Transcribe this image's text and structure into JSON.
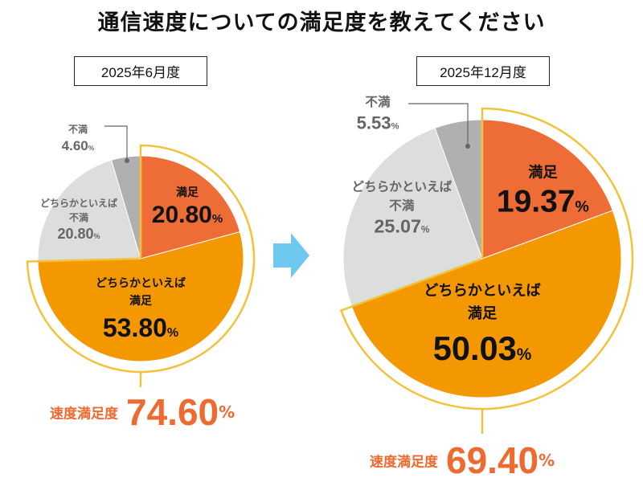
{
  "title": "通信速度についての満足度を教えてください",
  "chart_data": [
    {
      "type": "pie",
      "title": "2025年6月度",
      "categories": [
        "満足",
        "どちらかといえば満足",
        "どちらかといえば不満",
        "不満"
      ],
      "values": [
        20.8,
        53.8,
        20.8,
        4.6
      ],
      "value_labels": [
        "20.80",
        "53.80",
        "20.80",
        "4.60"
      ],
      "unit": "%",
      "colors": [
        "#ee6c35",
        "#f39800",
        "#dcdddd",
        "#b0b0b0"
      ],
      "total_label": "速度満足度",
      "total_value": "74.60"
    },
    {
      "type": "pie",
      "title": "2025年12月度",
      "categories": [
        "満足",
        "どちらかといえば満足",
        "どちらかといえば不満",
        "不満"
      ],
      "values": [
        19.37,
        50.03,
        25.07,
        5.53
      ],
      "value_labels": [
        "19.37",
        "50.03",
        "25.07",
        "5.53"
      ],
      "unit": "%",
      "colors": [
        "#ee6c35",
        "#f39800",
        "#dcdddd",
        "#b0b0b0"
      ],
      "total_label": "速度満足度",
      "total_value": "69.40"
    }
  ],
  "colors": {
    "highlight_ring": "#f2c23a",
    "arrow": "#6fc8ef",
    "total_text": "#ee6a30"
  }
}
